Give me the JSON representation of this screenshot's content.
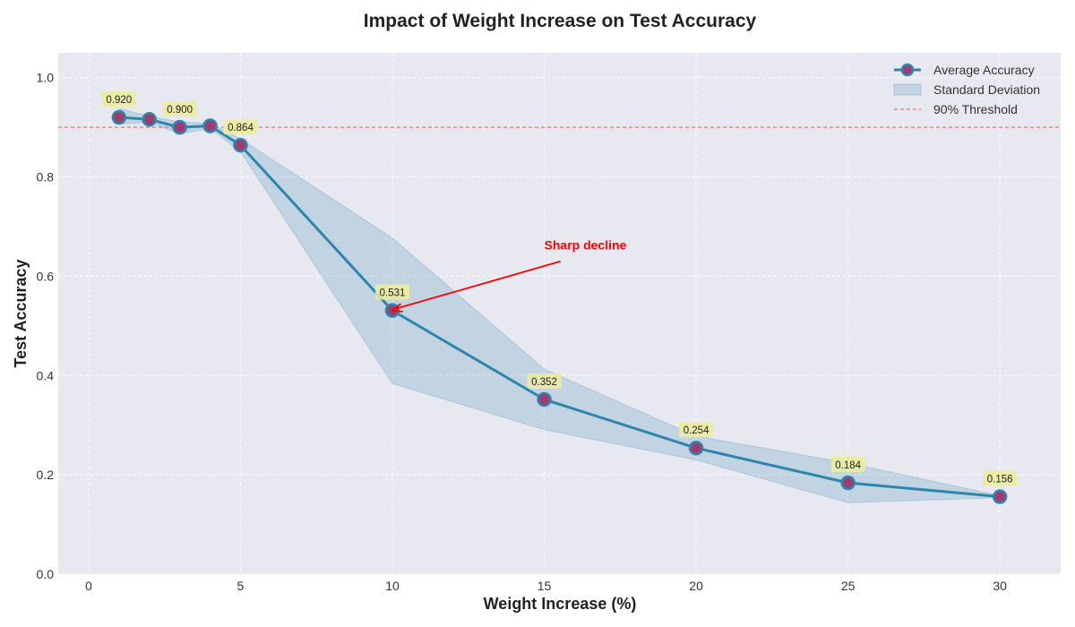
{
  "chart_data": {
    "type": "line",
    "title": "Impact of Weight Increase on Test Accuracy",
    "xlabel": "Weight Increase (%)",
    "ylabel": "Test Accuracy",
    "xlim": [
      -1,
      32
    ],
    "ylim": [
      0.0,
      1.05
    ],
    "xticks": [
      0,
      5,
      10,
      15,
      20,
      25,
      30
    ],
    "xtick_labels": [
      "0",
      "5",
      "10",
      "15",
      "20",
      "25",
      "30"
    ],
    "yticks": [
      0.0,
      0.2,
      0.4,
      0.6,
      0.8,
      1.0
    ],
    "ytick_labels": [
      "0.0",
      "0.2",
      "0.4",
      "0.6",
      "0.8",
      "1.0"
    ],
    "grid": true,
    "legend_position": "top-right",
    "series": [
      {
        "name": "Average Accuracy",
        "x": [
          1,
          2,
          3,
          4,
          5,
          10,
          15,
          20,
          25,
          30
        ],
        "values": [
          0.92,
          0.916,
          0.9,
          0.903,
          0.864,
          0.531,
          0.352,
          0.254,
          0.184,
          0.156
        ],
        "std_upper": [
          0.938,
          0.922,
          0.911,
          0.908,
          0.877,
          0.677,
          0.413,
          0.278,
          0.224,
          0.158
        ],
        "std_lower": [
          0.907,
          0.91,
          0.887,
          0.898,
          0.851,
          0.384,
          0.291,
          0.23,
          0.144,
          0.154
        ]
      }
    ],
    "data_labels": [
      {
        "x": 1,
        "value": 0.92,
        "text": "0.920"
      },
      {
        "x": 3,
        "value": 0.9,
        "text": "0.900"
      },
      {
        "x": 5,
        "value": 0.864,
        "text": "0.864"
      },
      {
        "x": 10,
        "value": 0.531,
        "text": "0.531"
      },
      {
        "x": 15,
        "value": 0.352,
        "text": "0.352"
      },
      {
        "x": 20,
        "value": 0.254,
        "text": "0.254"
      },
      {
        "x": 25,
        "value": 0.184,
        "text": "0.184"
      },
      {
        "x": 30,
        "value": 0.156,
        "text": "0.156"
      }
    ],
    "threshold": {
      "value": 0.9,
      "label": "90% Threshold"
    },
    "legend": {
      "line_label": "Average Accuracy",
      "band_label": "Standard Deviation",
      "threshold_label": "90% Threshold"
    },
    "annotation": {
      "text": "Sharp decline",
      "point_x": 10,
      "point_y": 0.531,
      "text_x": 15,
      "text_y": 0.65
    },
    "colors": {
      "line": "#2e86ab",
      "marker_face": "#a23b72",
      "band": "#2e86ab",
      "threshold": "#e57373",
      "annotation": "#ff0000",
      "label_box": "#ecec9c",
      "plot_bg": "#e8e8f1",
      "grid": "#ffffff"
    }
  }
}
